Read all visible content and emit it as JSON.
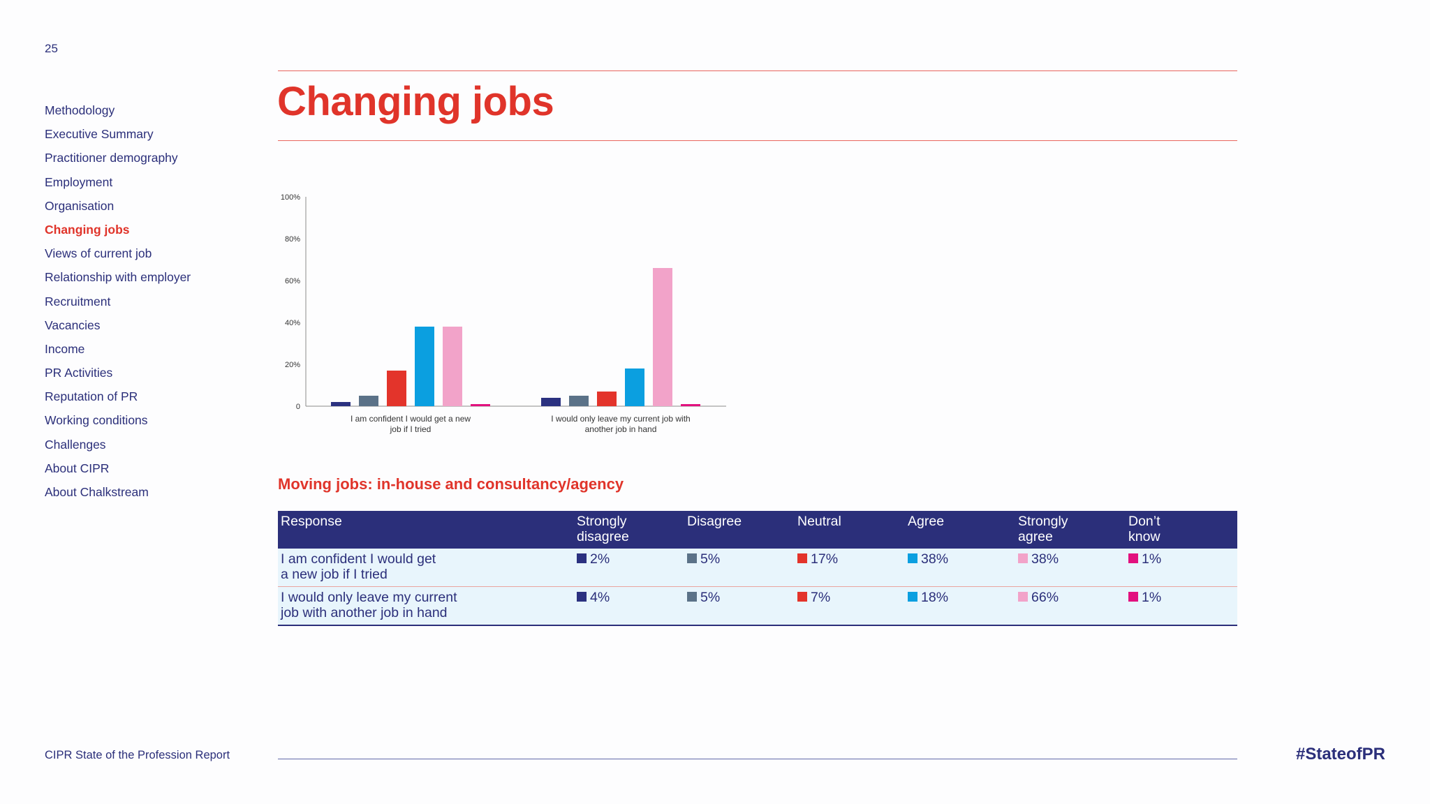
{
  "page_number": "25",
  "nav": [
    {
      "label": "Methodology",
      "active": false
    },
    {
      "label": "Executive Summary",
      "active": false
    },
    {
      "label": "Practitioner demography",
      "active": false
    },
    {
      "label": "Employment",
      "active": false
    },
    {
      "label": "Organisation",
      "active": false
    },
    {
      "label": "Changing jobs",
      "active": true
    },
    {
      "label": "Views of current job",
      "active": false
    },
    {
      "label": "Relationship with employer",
      "active": false
    },
    {
      "label": "Recruitment",
      "active": false
    },
    {
      "label": "Vacancies",
      "active": false
    },
    {
      "label": "Income",
      "active": false
    },
    {
      "label": "PR Activities",
      "active": false
    },
    {
      "label": "Reputation of PR",
      "active": false
    },
    {
      "label": "Working conditions",
      "active": false
    },
    {
      "label": "Challenges",
      "active": false
    },
    {
      "label": "About CIPR",
      "active": false
    },
    {
      "label": "About Chalkstream",
      "active": false
    }
  ],
  "title": "Changing jobs",
  "chart_data": {
    "type": "bar",
    "categories": [
      [
        "I am confident I would get a new",
        "job if I tried"
      ],
      [
        "I would only leave my current job with",
        "another job in hand"
      ]
    ],
    "series": [
      {
        "name": "Strongly disagree",
        "color": "#2b3180",
        "values": [
          2,
          4
        ]
      },
      {
        "name": "Disagree",
        "color": "#5b7288",
        "values": [
          5,
          5
        ]
      },
      {
        "name": "Neutral",
        "color": "#e3342b",
        "values": [
          17,
          7
        ]
      },
      {
        "name": "Agree",
        "color": "#0b9fe0",
        "values": [
          38,
          18
        ]
      },
      {
        "name": "Strongly agree",
        "color": "#f2a3c9",
        "values": [
          38,
          66
        ]
      },
      {
        "name": "Don't know",
        "color": "#e2117e",
        "values": [
          1,
          1
        ]
      }
    ],
    "y_ticks": [
      "0",
      "20%",
      "40%",
      "60%",
      "80%",
      "100%"
    ],
    "ylim": [
      0,
      100
    ]
  },
  "section_title": "Moving jobs: in-house and consultancy/agency",
  "table": {
    "headers": [
      [
        "Response"
      ],
      [
        "Strongly",
        "disagree"
      ],
      [
        "Disagree"
      ],
      [
        "Neutral"
      ],
      [
        "Agree"
      ],
      [
        "Strongly",
        "agree"
      ],
      [
        "Don’t",
        "know"
      ]
    ],
    "colors": [
      "#2b3180",
      "#5b7288",
      "#e3342b",
      "#0b9fe0",
      "#f2a3c9",
      "#e2117e"
    ],
    "rows": [
      {
        "label": [
          "I am confident I would get",
          "a new job if I tried"
        ],
        "values": [
          "2%",
          "5%",
          "17%",
          "38%",
          "38%",
          "1%"
        ]
      },
      {
        "label": [
          "I would only leave my current",
          "job with another job in hand"
        ],
        "values": [
          "4%",
          "5%",
          "7%",
          "18%",
          "66%",
          "1%"
        ]
      }
    ]
  },
  "footer": {
    "report": "CIPR State of the Profession Report",
    "hashtag": "#StateofPR"
  }
}
